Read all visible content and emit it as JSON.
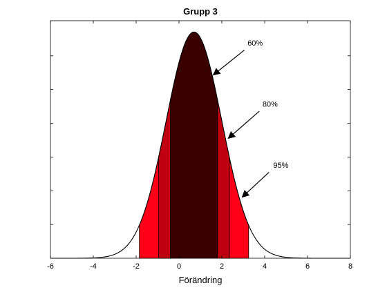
{
  "chart_data": {
    "type": "area",
    "title": "Grupp 3",
    "xlabel": "Förändring",
    "ylabel": "",
    "xlim": [
      -6,
      8
    ],
    "ylim": [
      0,
      1.05
    ],
    "x_ticks": [
      "-6",
      "-4",
      "-2",
      "0",
      "2",
      "4",
      "6",
      "8"
    ],
    "y_ticks_count": 6,
    "grid": false,
    "legend": "none",
    "curve": {
      "type": "normal",
      "mean": 0.7,
      "sd": 1.3,
      "peak": 1.0,
      "color": "#000000"
    },
    "bands": [
      {
        "level": "95%",
        "x_range": [
          -1.85,
          3.25
        ],
        "color": "#ff0018"
      },
      {
        "level": "80%",
        "x_range": [
          -0.95,
          2.35
        ],
        "color": "#c00010"
      },
      {
        "level": "60%",
        "x_range": [
          -0.4,
          1.8
        ],
        "color": "#3a0000"
      }
    ],
    "annotations": [
      {
        "text": "60%",
        "label_x": 3.2,
        "label_y": 0.94,
        "arrow_from": [
          3.05,
          0.92
        ],
        "arrow_to": [
          1.6,
          0.81
        ]
      },
      {
        "text": "80%",
        "label_x": 3.9,
        "label_y": 0.67,
        "arrow_from": [
          3.75,
          0.65
        ],
        "arrow_to": [
          2.3,
          0.53
        ]
      },
      {
        "text": "95%",
        "label_x": 4.4,
        "label_y": 0.4,
        "arrow_from": [
          4.2,
          0.38
        ],
        "arrow_to": [
          2.95,
          0.27
        ]
      }
    ]
  }
}
